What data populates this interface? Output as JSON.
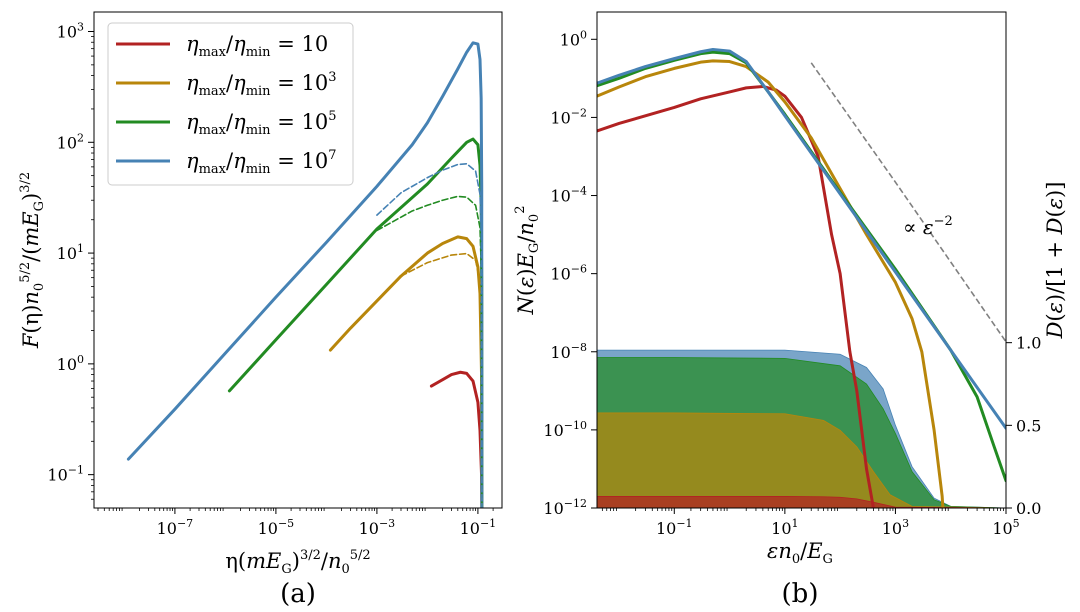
{
  "colors": {
    "red": "#b22222",
    "gold": "#b8860b",
    "green": "#228b22",
    "blue": "#4682b4",
    "gray": "#808080"
  },
  "chart_data": [
    {
      "id": "a",
      "type": "line",
      "panel_label": "(a)",
      "xlabel": "η(mE_G)^{3/2}/n_0^{5/2}",
      "ylabel": "F(η)n_0^{5/2}/(mE_G)^{3/2}",
      "xscale": "log",
      "yscale": "log",
      "xlim": [
        2.5e-09,
        0.3
      ],
      "ylim": [
        0.05,
        1500
      ],
      "xticks": [
        {
          "value": 1e-07,
          "base": "10",
          "exp": "−7"
        },
        {
          "value": 1e-05,
          "base": "10",
          "exp": "−5"
        },
        {
          "value": 0.001,
          "base": "10",
          "exp": "−3"
        },
        {
          "value": 0.1,
          "base": "10",
          "exp": "−1"
        }
      ],
      "yticks": [
        {
          "value": 0.1,
          "base": "10",
          "exp": "−1"
        },
        {
          "value": 1,
          "base": "10",
          "exp": "0"
        },
        {
          "value": 10,
          "base": "10",
          "exp": "1"
        },
        {
          "value": 100,
          "base": "10",
          "exp": "2"
        },
        {
          "value": 1000,
          "base": "10",
          "exp": "3"
        }
      ],
      "legend": {
        "placement": "upper-left",
        "entries": [
          {
            "label": "η_max/η_min = 10",
            "color_key": "red"
          },
          {
            "label": "η_max/η_min = 10^3",
            "color_key": "gold"
          },
          {
            "label": "η_max/η_min = 10^5",
            "color_key": "green"
          },
          {
            "label": "η_max/η_min = 10^7",
            "color_key": "blue"
          }
        ]
      },
      "series": [
        {
          "name": "η_max/η_min = 10",
          "color_key": "red",
          "style": "solid",
          "x": [
            0.012,
            0.02,
            0.03,
            0.045,
            0.06,
            0.08,
            0.1,
            0.11,
            0.118,
            0.12
          ],
          "y": [
            0.63,
            0.72,
            0.8,
            0.84,
            0.82,
            0.7,
            0.45,
            0.25,
            0.1,
            0.05
          ]
        },
        {
          "name": "η_max/η_min = 10^3",
          "color_key": "gold",
          "style": "solid",
          "x": [
            0.00012,
            0.0003,
            0.001,
            0.003,
            0.01,
            0.02,
            0.04,
            0.06,
            0.08,
            0.1,
            0.11,
            0.118,
            0.12
          ],
          "y": [
            1.33,
            2.1,
            3.7,
            6.2,
            10,
            12.2,
            14,
            13.5,
            11.5,
            7.5,
            4.3,
            0.8,
            0.05
          ]
        },
        {
          "name": "η_max/η_min = 10^5",
          "color_key": "green",
          "style": "solid",
          "x": [
            1.2e-06,
            1e-05,
            0.0001,
            0.001,
            0.01,
            0.03,
            0.06,
            0.08,
            0.1,
            0.11,
            0.116,
            0.119,
            0.12
          ],
          "y": [
            0.57,
            1.65,
            5.2,
            16.5,
            42,
            72,
            100,
            107,
            95,
            62,
            28,
            5,
            0.05
          ]
        },
        {
          "name": "η_max/η_min = 10^7",
          "color_key": "blue",
          "style": "solid",
          "x": [
            1.2e-08,
            1e-07,
            1e-06,
            1e-05,
            0.0001,
            0.001,
            0.005,
            0.01,
            0.02,
            0.04,
            0.06,
            0.08,
            0.1,
            0.11,
            0.116,
            0.119,
            0.12
          ],
          "y": [
            0.138,
            0.39,
            1.25,
            4,
            12.5,
            40,
            95,
            150,
            260,
            460,
            650,
            790,
            770,
            560,
            250,
            40,
            0.05
          ]
        },
        {
          "name": "",
          "color_key": "gold",
          "style": "dashed",
          "x": [
            0.003,
            0.01,
            0.03,
            0.06,
            0.09,
            0.11,
            0.117,
            0.12
          ],
          "y": [
            6.2,
            8.2,
            9.6,
            9.9,
            8.6,
            5.5,
            2.5,
            0.05
          ]
        },
        {
          "name": "",
          "color_key": "green",
          "style": "dashed",
          "x": [
            0.001,
            0.005,
            0.01,
            0.02,
            0.04,
            0.06,
            0.09,
            0.11,
            0.117,
            0.12
          ],
          "y": [
            16,
            24,
            27,
            30,
            32.5,
            32,
            27,
            17,
            7,
            0.05
          ]
        },
        {
          "name": "",
          "color_key": "blue",
          "style": "dashed",
          "x": [
            0.001,
            0.003,
            0.01,
            0.02,
            0.04,
            0.06,
            0.09,
            0.11,
            0.117,
            0.12
          ],
          "y": [
            22,
            35,
            48,
            56,
            63,
            64,
            55,
            34,
            14,
            0.05
          ]
        }
      ]
    },
    {
      "id": "b",
      "type": "line",
      "panel_label": "(b)",
      "xlabel": "εn_0/E_G",
      "ylabel": "N(ε)E_G/n_0^2",
      "y2label": "D(ε)/[1 + D(ε)]",
      "xscale": "log",
      "yscale": "log",
      "xlim": [
        0.004,
        100000
      ],
      "ylim": [
        1e-12,
        5
      ],
      "y2lim": [
        0,
        3
      ],
      "xticks": [
        {
          "value": 0.1,
          "base": "10",
          "exp": "−1"
        },
        {
          "value": 10,
          "base": "10",
          "exp": "1"
        },
        {
          "value": 1000,
          "base": "10",
          "exp": "3"
        },
        {
          "value": 100000,
          "base": "10",
          "exp": "5"
        }
      ],
      "yticks": [
        {
          "value": 1e-12,
          "base": "10",
          "exp": "−12"
        },
        {
          "value": 1e-10,
          "base": "10",
          "exp": "−10"
        },
        {
          "value": 1e-08,
          "base": "10",
          "exp": "−8"
        },
        {
          "value": 1e-06,
          "base": "10",
          "exp": "−6"
        },
        {
          "value": 0.0001,
          "base": "10",
          "exp": "−4"
        },
        {
          "value": 0.01,
          "base": "10",
          "exp": "−2"
        },
        {
          "value": 1,
          "base": "10",
          "exp": "0"
        }
      ],
      "y2ticks": [
        {
          "value": 0,
          "label": "0.0"
        },
        {
          "value": 0.5,
          "label": "0.5"
        },
        {
          "value": 1,
          "label": "1.0"
        }
      ],
      "annotation": {
        "text": "∝ ε^{−2}",
        "x": 2000,
        "y": 1e-05
      },
      "guide_line": {
        "style": "dashed",
        "color_key": "gray",
        "x": [
          30,
          1000,
          100000
        ],
        "y": [
          0.25,
          0.00022,
          1.8e-08
        ]
      },
      "fills": [
        {
          "color_key": "blue",
          "x": [
            0.004,
            0.1,
            10,
            100,
            300,
            600,
            1000,
            2000,
            5000,
            10000,
            100000
          ],
          "y2": [
            0.955,
            0.955,
            0.955,
            0.93,
            0.85,
            0.72,
            0.5,
            0.25,
            0.06,
            0.01,
            0
          ]
        },
        {
          "color_key": "green",
          "x": [
            0.004,
            0.1,
            10,
            100,
            300,
            600,
            1000,
            2000,
            5000,
            10000,
            100000
          ],
          "y2": [
            0.91,
            0.91,
            0.905,
            0.86,
            0.75,
            0.6,
            0.45,
            0.22,
            0.05,
            0.01,
            0
          ]
        },
        {
          "color_key": "gold",
          "x": [
            0.004,
            0.1,
            10,
            50,
            100,
            200,
            400,
            800,
            2000,
            100000
          ],
          "y2": [
            0.575,
            0.575,
            0.57,
            0.53,
            0.47,
            0.37,
            0.22,
            0.08,
            0.01,
            0
          ]
        },
        {
          "color_key": "red",
          "x": [
            0.004,
            0.1,
            10,
            50,
            100,
            200,
            400,
            1000,
            100000
          ],
          "y2": [
            0.07,
            0.07,
            0.07,
            0.068,
            0.065,
            0.055,
            0.035,
            0.005,
            0
          ]
        }
      ],
      "series": [
        {
          "name": "η_max/η_min = 10",
          "color_key": "red",
          "style": "solid",
          "x": [
            0.004,
            0.01,
            0.03,
            0.1,
            0.3,
            1,
            2,
            4,
            7,
            10,
            20,
            40,
            70,
            100,
            150,
            200,
            300,
            400,
            500
          ],
          "y": [
            0.0045,
            0.007,
            0.011,
            0.018,
            0.03,
            0.045,
            0.057,
            0.062,
            0.05,
            0.035,
            0.01,
            0.001,
            1e-05,
            1e-06,
            1e-08,
            1e-09,
            1e-11,
            1e-12,
            1e-13
          ]
        },
        {
          "name": "η_max/η_min = 10^3",
          "color_key": "gold",
          "style": "solid",
          "x": [
            0.004,
            0.01,
            0.03,
            0.1,
            0.3,
            0.5,
            1,
            2,
            5,
            10,
            30,
            100,
            300,
            1000,
            2000,
            3000,
            5000,
            7000,
            8000
          ],
          "y": [
            0.035,
            0.06,
            0.11,
            0.18,
            0.26,
            0.28,
            0.27,
            0.2,
            0.08,
            0.025,
            0.003,
            0.00015,
            1e-05,
            6e-07,
            7e-08,
            1e-08,
            1e-10,
            2e-12,
            1e-13
          ]
        },
        {
          "name": "η_max/η_min = 10^5",
          "color_key": "green",
          "style": "solid",
          "x": [
            0.004,
            0.01,
            0.03,
            0.1,
            0.3,
            0.5,
            1,
            2,
            5,
            10,
            100,
            1000,
            10000,
            30000,
            60000,
            100000
          ],
          "y": [
            0.065,
            0.1,
            0.18,
            0.29,
            0.43,
            0.47,
            0.43,
            0.25,
            0.045,
            0.012,
            0.00012,
            1.3e-06,
            1.1e-08,
            7e-10,
            4e-11,
            5e-12
          ]
        },
        {
          "name": "η_max/η_min = 10^7",
          "color_key": "blue",
          "style": "solid",
          "x": [
            0.004,
            0.01,
            0.03,
            0.1,
            0.3,
            0.5,
            1,
            2,
            5,
            10,
            100,
            1000,
            10000,
            100000
          ],
          "y": [
            0.075,
            0.12,
            0.2,
            0.32,
            0.48,
            0.55,
            0.5,
            0.27,
            0.045,
            0.011,
            0.00011,
            1.1e-06,
            1.1e-08,
            1.1e-10
          ]
        }
      ]
    }
  ]
}
